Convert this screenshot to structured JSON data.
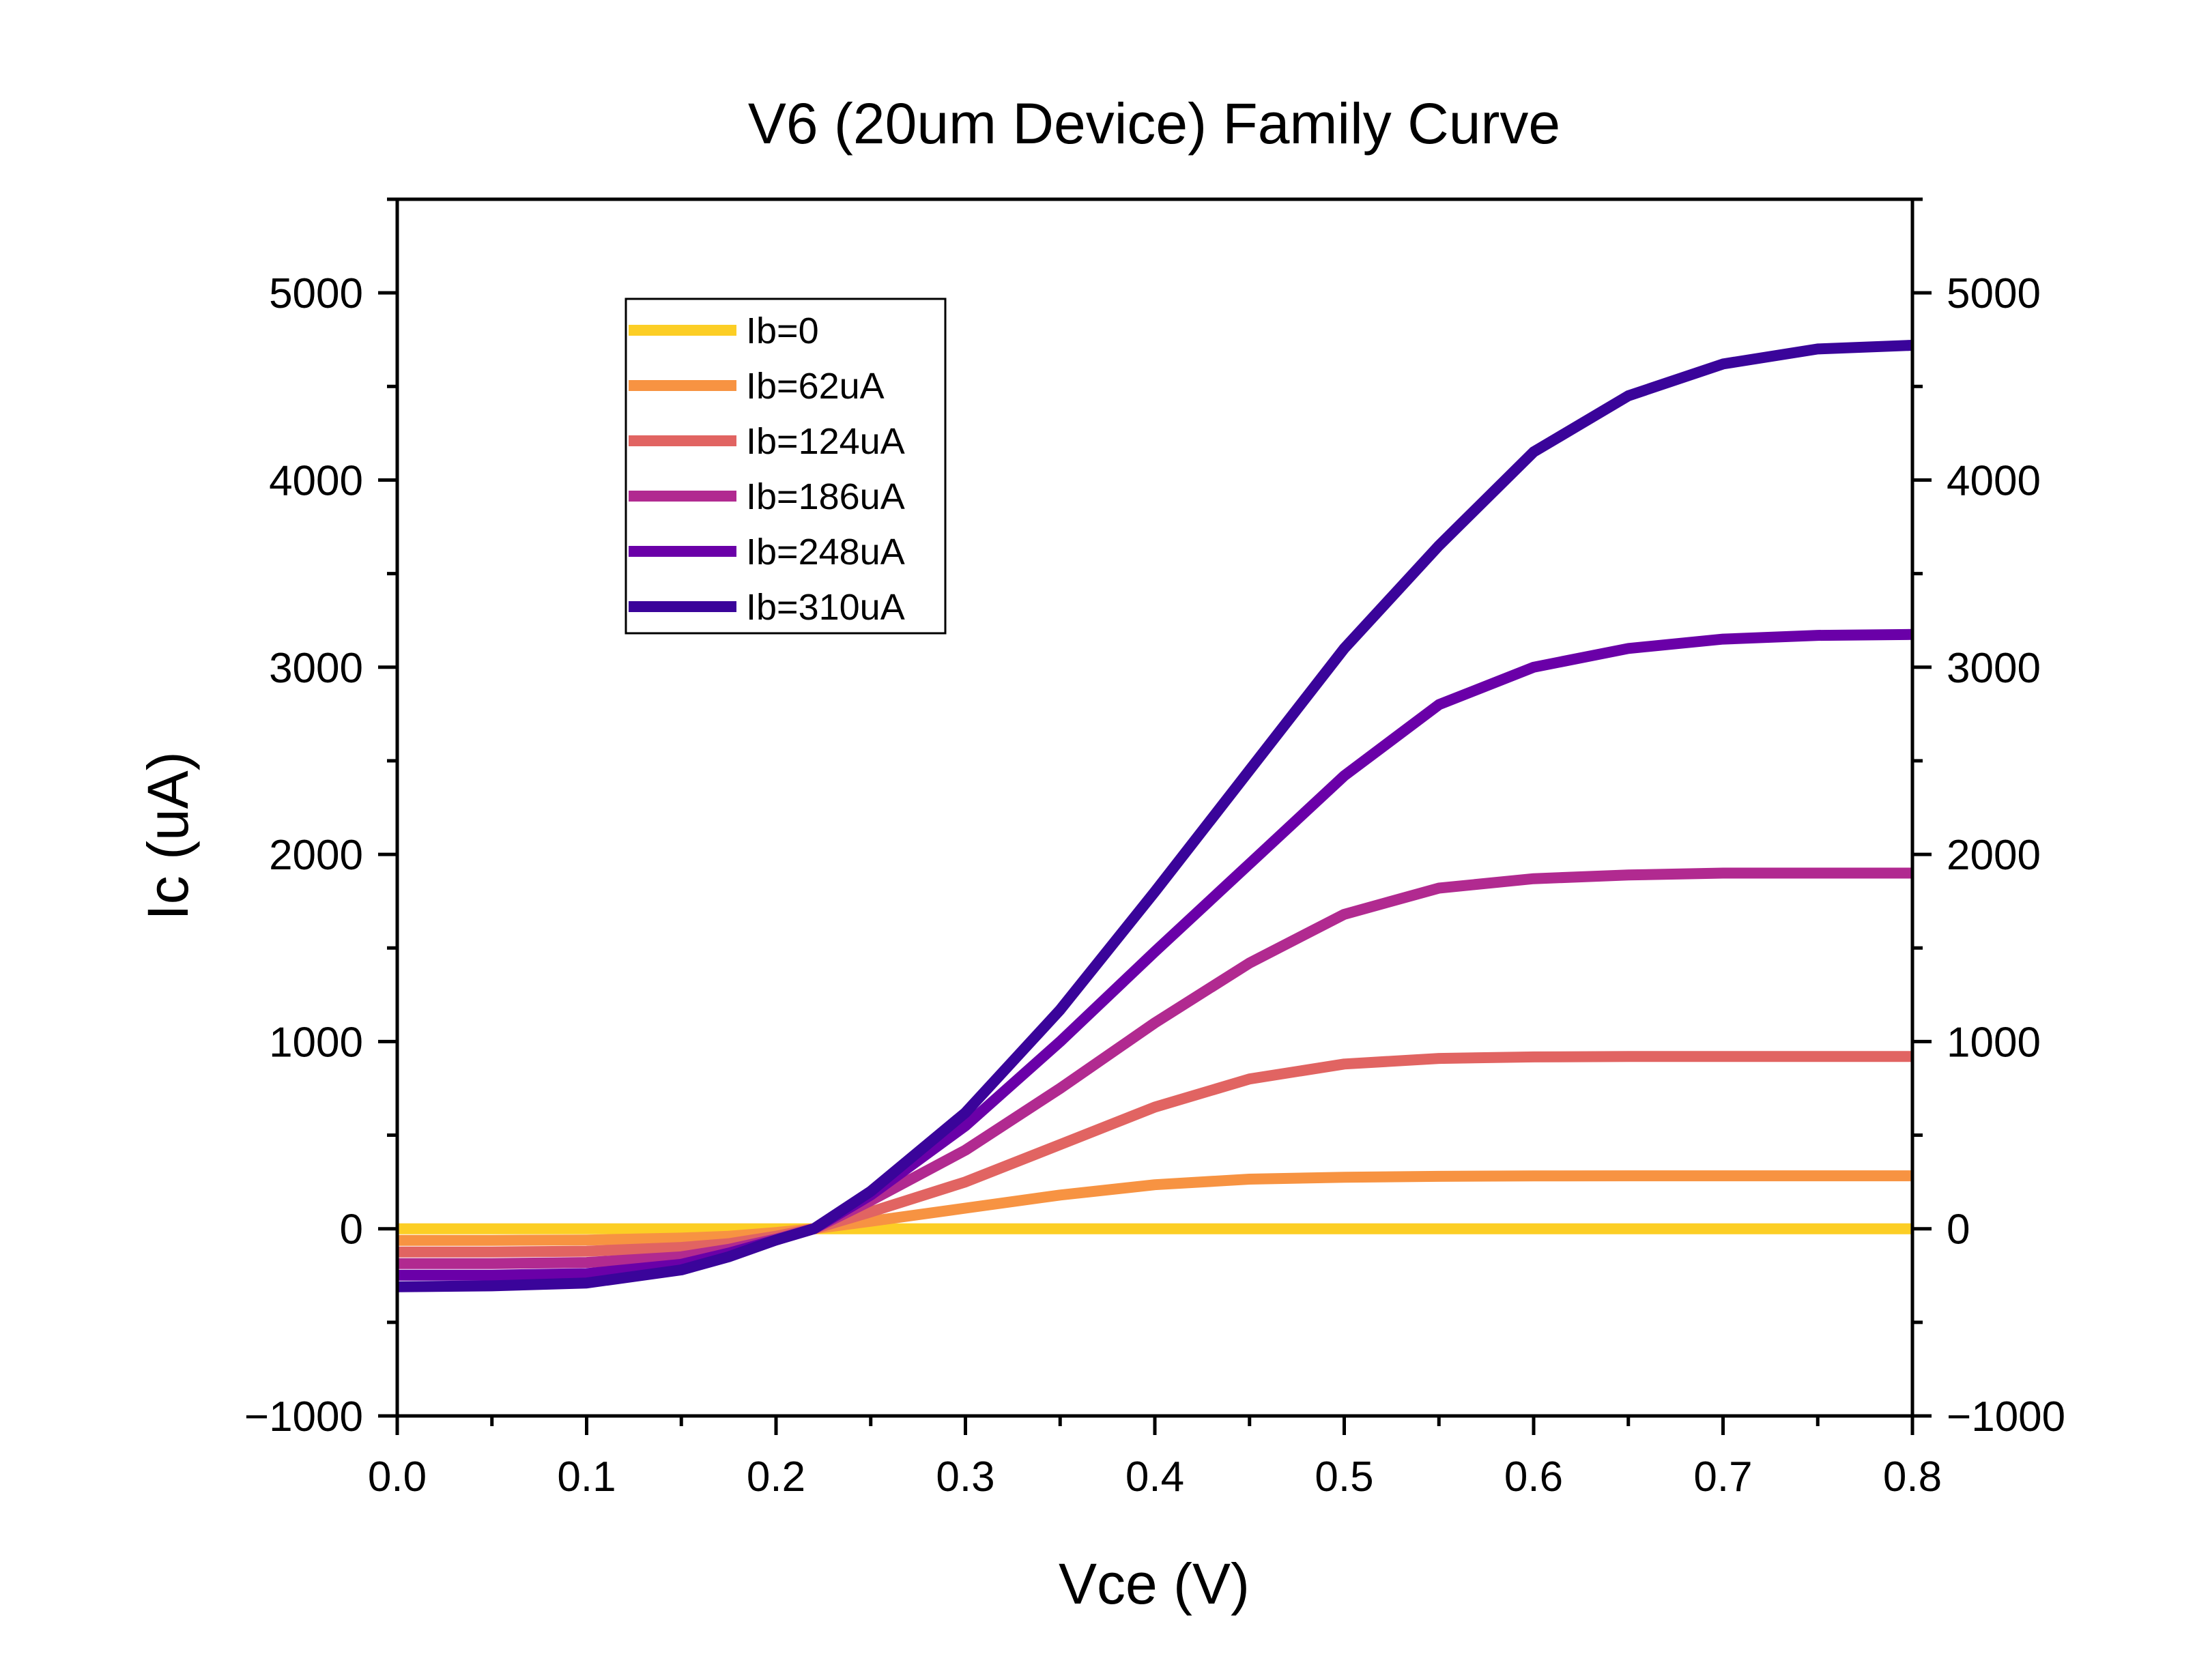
{
  "chart_data": {
    "type": "line",
    "title": "V6 (20um Device) Family Curve",
    "xlabel": "Vce (V)",
    "ylabel": "Ic (uA)",
    "xlim": [
      0.0,
      0.8
    ],
    "ylim": [
      -1000,
      5500
    ],
    "x_ticks": [
      "0.0",
      "0.1",
      "0.2",
      "0.3",
      "0.4",
      "0.5",
      "0.6",
      "0.7",
      "0.8"
    ],
    "y_ticks": [
      "−1000",
      "0",
      "1000",
      "2000",
      "3000",
      "4000",
      "5000"
    ],
    "y_ticks_right": [
      "−1000",
      "0",
      "1000",
      "2000",
      "3000",
      "4000",
      "5000"
    ],
    "grid": false,
    "legend_position": "top-left",
    "x": [
      0.0,
      0.05,
      0.1,
      0.15,
      0.175,
      0.2,
      0.22,
      0.25,
      0.3,
      0.35,
      0.4,
      0.45,
      0.5,
      0.55,
      0.6,
      0.65,
      0.7,
      0.75,
      0.8
    ],
    "series": [
      {
        "name": "Ib=0",
        "color": "#fcce25",
        "values": [
          0,
          0,
          0,
          0,
          0,
          0,
          0,
          0,
          0,
          0,
          0,
          0,
          0,
          0,
          0,
          0,
          0,
          0,
          0
        ]
      },
      {
        "name": "Ib=62uA",
        "color": "#f79342",
        "values": [
          -62,
          -62,
          -60,
          -50,
          -40,
          -20,
          0,
          40,
          110,
          180,
          235,
          265,
          275,
          280,
          282,
          283,
          283,
          283,
          283
        ]
      },
      {
        "name": "Ib=124uA",
        "color": "#e16462",
        "values": [
          -124,
          -124,
          -120,
          -100,
          -80,
          -40,
          0,
          90,
          250,
          450,
          650,
          800,
          880,
          910,
          918,
          920,
          920,
          920,
          920
        ]
      },
      {
        "name": "Ib=186uA",
        "color": "#b12a90",
        "values": [
          -186,
          -186,
          -180,
          -150,
          -110,
          -55,
          0,
          150,
          420,
          750,
          1100,
          1420,
          1680,
          1820,
          1870,
          1890,
          1900,
          1900,
          1900
        ]
      },
      {
        "name": "Ib=248uA",
        "color": "#6a00a8",
        "values": [
          -248,
          -248,
          -240,
          -190,
          -130,
          -60,
          0,
          180,
          550,
          1000,
          1480,
          1950,
          2420,
          2800,
          3000,
          3100,
          3150,
          3170,
          3175
        ]
      },
      {
        "name": "Ib=310uA",
        "color": "#3a049a",
        "values": [
          -310,
          -305,
          -290,
          -220,
          -150,
          -60,
          0,
          200,
          620,
          1170,
          1800,
          2450,
          3100,
          3650,
          4150,
          4450,
          4620,
          4700,
          4720
        ]
      }
    ]
  }
}
